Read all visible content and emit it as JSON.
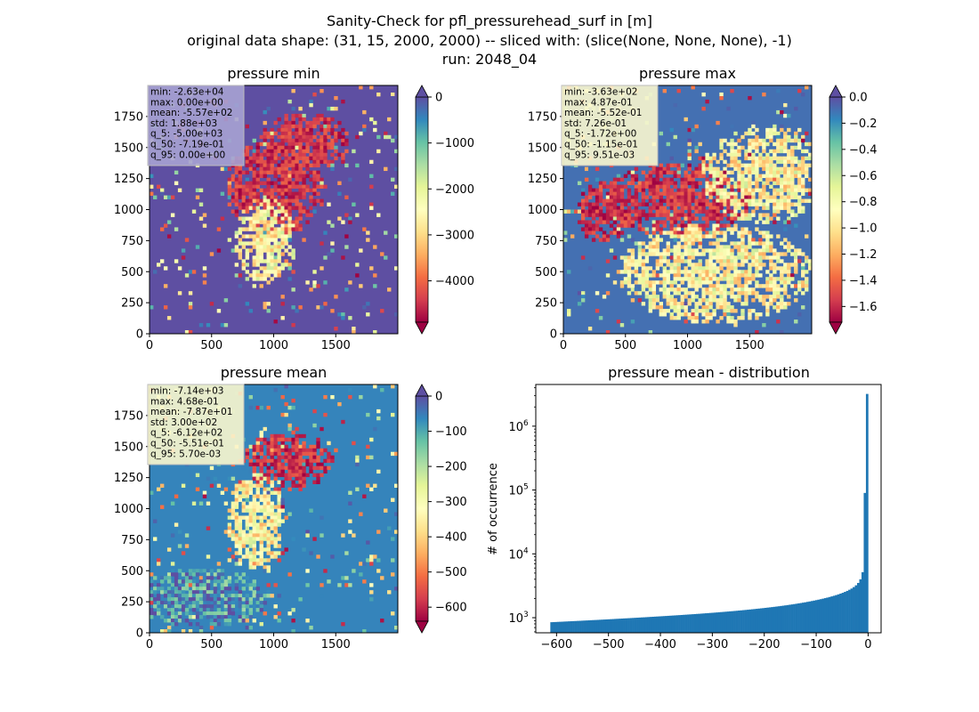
{
  "figure": {
    "suptitle_lines": [
      "Sanity-Check for pfl_pressurehead_surf in [m]",
      "original data shape: (31, 15, 2000, 2000) -- sliced with: (slice(None, None, None), -1)",
      "run: 2048_04"
    ]
  },
  "chart_data": [
    {
      "type": "heatmap",
      "title": "pressure min",
      "x_ticks": [
        0,
        500,
        1000,
        1500
      ],
      "y_ticks": [
        0,
        250,
        500,
        750,
        1000,
        1250,
        1500,
        1750
      ],
      "xlim": [
        0,
        2000
      ],
      "ylim": [
        0,
        2000
      ],
      "colormap": "Spectral",
      "colorbar": {
        "vmin": -4900,
        "vmax": 0,
        "ticks": [
          0,
          -1000,
          -2000,
          -3000,
          -4000
        ],
        "tick_labels": [
          "0",
          "−1000",
          "−2000",
          "−3000",
          "−4000"
        ],
        "extend": "both"
      },
      "stats_box": [
        "min: -2.63e+04",
        "max: 0.00e+00",
        "mean: -5.57e+02",
        "std: 1.88e+03",
        "q_5: -5.00e+03",
        "q_50: -7.19e-01",
        "q_95: 0.00e+00"
      ],
      "stats_box_color": "#a7a2d3",
      "background_value": 0
    },
    {
      "type": "heatmap",
      "title": "pressure max",
      "x_ticks": [
        0,
        500,
        1000,
        1500
      ],
      "y_ticks": [
        0,
        250,
        500,
        750,
        1000,
        1250,
        1500,
        1750
      ],
      "xlim": [
        0,
        2000
      ],
      "ylim": [
        0,
        2000
      ],
      "colormap": "Spectral",
      "colorbar": {
        "vmin": -1.72,
        "vmax": 0.0,
        "ticks": [
          0.0,
          -0.2,
          -0.4,
          -0.6,
          -0.8,
          -1.0,
          -1.2,
          -1.4,
          -1.6
        ],
        "tick_labels": [
          "0.0",
          "−0.2",
          "−0.4",
          "−0.6",
          "−0.8",
          "−1.0",
          "−1.2",
          "−1.4",
          "−1.6"
        ],
        "extend": "both"
      },
      "stats_box": [
        "min: -3.63e+02",
        "max: 4.87e-01",
        "mean: -5.52e-01",
        "std: 7.26e-01",
        "q_5: -1.72e+00",
        "q_50: -1.15e-01",
        "q_95: 9.51e-03"
      ],
      "stats_box_color": "#fbf7ce",
      "background_value": -0.1
    },
    {
      "type": "heatmap",
      "title": "pressure mean",
      "x_ticks": [
        0,
        500,
        1000,
        1500
      ],
      "y_ticks": [
        0,
        250,
        500,
        750,
        1000,
        1250,
        1500,
        1750
      ],
      "xlim": [
        0,
        2000
      ],
      "ylim": [
        0,
        2000
      ],
      "colormap": "Spectral",
      "colorbar": {
        "vmin": -640,
        "vmax": 0,
        "ticks": [
          0,
          -100,
          -200,
          -300,
          -400,
          -500,
          -600
        ],
        "tick_labels": [
          "0",
          "−100",
          "−200",
          "−300",
          "−400",
          "−500",
          "−600"
        ],
        "extend": "both"
      },
      "stats_box": [
        "min: -7.14e+03",
        "max: 4.68e-01",
        "mean: -7.87e+01",
        "std: 3.00e+02",
        "q_5: -6.12e+02",
        "q_50: -5.51e-01",
        "q_95: 5.70e-03"
      ],
      "stats_box_color": "#fbf7ce",
      "background_value": -60
    },
    {
      "type": "bar",
      "title": "pressure mean - distribution",
      "ylabel": "# of occurrence",
      "y_scale": "log",
      "xlim": [
        -640,
        25
      ],
      "ylim": [
        580,
        4500000
      ],
      "x_ticks": [
        -600,
        -500,
        -400,
        -300,
        -200,
        -100,
        0
      ],
      "x_tick_labels": [
        "−600",
        "−500",
        "−400",
        "−300",
        "−200",
        "−100",
        "0"
      ],
      "y_ticks": [
        1000,
        10000,
        100000,
        1000000
      ],
      "bin_range": [
        -612,
        0
      ],
      "bar_color": "#1f77b4",
      "bin_counts": [
        850,
        853,
        856,
        860,
        863,
        866,
        870,
        873,
        877,
        880,
        884,
        887,
        891,
        894,
        898,
        902,
        905,
        909,
        913,
        917,
        920,
        924,
        928,
        932,
        936,
        940,
        944,
        948,
        952,
        957,
        961,
        965,
        969,
        974,
        978,
        982,
        987,
        991,
        996,
        1000,
        1005,
        1010,
        1014,
        1019,
        1024,
        1029,
        1034,
        1039,
        1044,
        1049,
        1054,
        1059,
        1064,
        1070,
        1075,
        1081,
        1086,
        1092,
        1097,
        1103,
        1109,
        1115,
        1121,
        1127,
        1133,
        1140,
        1146,
        1152,
        1159,
        1166,
        1173,
        1180,
        1187,
        1194,
        1201,
        1209,
        1217,
        1225,
        1233,
        1241,
        1249,
        1258,
        1266,
        1275,
        1284,
        1294,
        1303,
        1313,
        1323,
        1333,
        1344,
        1355,
        1366,
        1377,
        1389,
        1401,
        1413,
        1426,
        1439,
        1452,
        1466,
        1480,
        1495,
        1510,
        1526,
        1542,
        1559,
        1577,
        1595,
        1614,
        1633,
        1654,
        1675,
        1697,
        1720,
        1744,
        1770,
        1796,
        1824,
        1853,
        1884,
        1916,
        1950,
        1986,
        2025,
        2065,
        2109,
        2155,
        2206,
        2260,
        2319,
        2384,
        2456,
        2537,
        2629,
        2736,
        2862,
        3017,
        3217,
        3503,
        3992,
        5160,
        90000,
        3200000
      ]
    }
  ]
}
